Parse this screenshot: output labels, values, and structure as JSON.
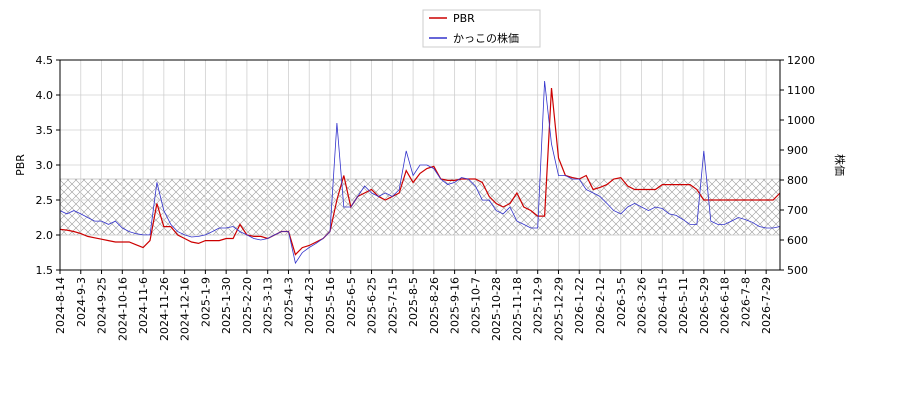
{
  "chart_data": {
    "type": "line",
    "categories": [
      "2024-8-14",
      null,
      null,
      "2024-9-3",
      null,
      null,
      "2024-9-25",
      null,
      null,
      "2024-10-16",
      null,
      null,
      "2024-11-6",
      null,
      null,
      "2024-11-26",
      null,
      null,
      "2024-12-16",
      null,
      null,
      "2025-1-9",
      null,
      null,
      "2025-1-30",
      null,
      null,
      "2025-2-20",
      null,
      null,
      "2025-3-13",
      null,
      null,
      "2025-4-3",
      null,
      null,
      "2025-4-23",
      null,
      null,
      "2025-5-16",
      null,
      null,
      "2025-6-5",
      null,
      null,
      "2025-6-25",
      null,
      null,
      "2025-7-15",
      null,
      null,
      "2025-8-5",
      null,
      null,
      "2025-8-26",
      null,
      null,
      "2025-9-16",
      null,
      null,
      "2025-10-7",
      null,
      null,
      "2025-10-28",
      null,
      null,
      "2025-11-18",
      null,
      null,
      "2025-12-9",
      null,
      null,
      "2025-12-29",
      null,
      null,
      "2026-1-22",
      null,
      null,
      "2026-2-12",
      null,
      null,
      "2026-3-5",
      null,
      null,
      "2026-3-26",
      null,
      null,
      "2026-4-15",
      null,
      null,
      "2026-5-11",
      null,
      null,
      "2026-5-29",
      null,
      null,
      "2026-6-18",
      null,
      null,
      "2026-7-8",
      null,
      null,
      "2026-7-29",
      null,
      null
    ],
    "series": [
      {
        "name": "PBR",
        "color": "#cc0000",
        "values": [
          2.08,
          2.07,
          2.05,
          2.02,
          1.98,
          1.96,
          1.94,
          1.92,
          1.9,
          1.9,
          1.9,
          1.86,
          1.82,
          1.92,
          2.45,
          2.12,
          2.12,
          2.0,
          1.95,
          1.9,
          1.88,
          1.92,
          1.92,
          1.92,
          1.95,
          1.95,
          2.15,
          2.0,
          1.98,
          1.98,
          1.95,
          2.0,
          2.05,
          2.05,
          1.72,
          1.82,
          1.85,
          1.9,
          1.95,
          2.05,
          2.5,
          2.85,
          2.4,
          2.55,
          2.6,
          2.65,
          2.55,
          2.5,
          2.55,
          2.6,
          2.92,
          2.75,
          2.88,
          2.95,
          2.98,
          2.8,
          2.78,
          2.78,
          2.8,
          2.8,
          2.8,
          2.75,
          2.55,
          2.45,
          2.4,
          2.45,
          2.6,
          2.4,
          2.35,
          2.27,
          2.27,
          4.1,
          3.1,
          2.85,
          2.82,
          2.8,
          2.85,
          2.65,
          2.68,
          2.72,
          2.8,
          2.82,
          2.7,
          2.65,
          2.65,
          2.65,
          2.65,
          2.72,
          2.72,
          2.72,
          2.72,
          2.72,
          2.65,
          2.5,
          2.5,
          2.5,
          2.5,
          2.5,
          2.5,
          2.5,
          2.5,
          2.5,
          2.5,
          2.5,
          2.6
        ]
      },
      {
        "name": "かっこの株価",
        "color": "#3333cc",
        "axis": "y2",
        "values": [
          698,
          687,
          698,
          687,
          675,
          663,
          663,
          652,
          663,
          640,
          628,
          621,
          617,
          617,
          792,
          698,
          652,
          628,
          617,
          610,
          612,
          617,
          628,
          640,
          640,
          645,
          628,
          617,
          605,
          600,
          605,
          617,
          628,
          628,
          523,
          558,
          575,
          589,
          605,
          628,
          990,
          710,
          710,
          745,
          780,
          757,
          745,
          757,
          745,
          768,
          897,
          815,
          850,
          850,
          838,
          803,
          785,
          792,
          808,
          803,
          780,
          733,
          733,
          698,
          687,
          710,
          663,
          652,
          640,
          640,
          1130,
          920,
          815,
          815,
          803,
          803,
          768,
          757,
          745,
          722,
          698,
          687,
          710,
          722,
          710,
          698,
          710,
          705,
          687,
          682,
          668,
          652,
          652,
          897,
          663,
          652,
          652,
          663,
          675,
          668,
          659,
          645,
          640,
          640,
          645
        ]
      }
    ],
    "ylabel": "PBR",
    "y2label": "株価",
    "ylim": [
      1.5,
      4.5
    ],
    "yticks": [
      1.5,
      {
        "value": 2,
        "label": "2.0"
      },
      2.5,
      {
        "value": 3,
        "label": "3.0"
      },
      3.5,
      {
        "value": 4,
        "label": "4.0"
      },
      4.5
    ],
    "y2lim": [
      500,
      1200
    ],
    "y2ticks": [
      500,
      600,
      700,
      800,
      900,
      1000,
      1100,
      1200
    ],
    "shaded_range": [
      2,
      2.8
    ],
    "grid": true,
    "legend": "top"
  }
}
